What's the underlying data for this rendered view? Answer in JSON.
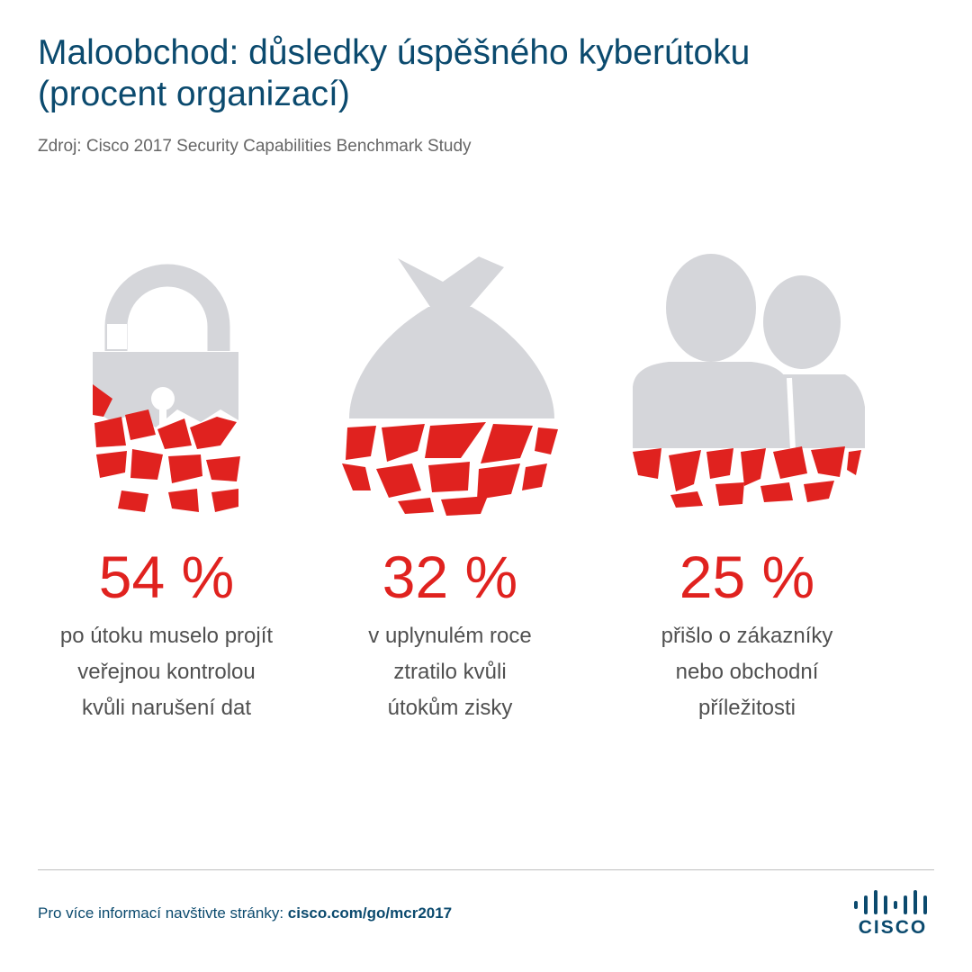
{
  "header": {
    "title_line1": "Maloobchod: důsledky úspěšného kyberútoku",
    "title_line2": "(procent organizací)",
    "source": "Zdroj: Cisco 2017 Security Capabilities Benchmark Study"
  },
  "stats": [
    {
      "icon": "broken-padlock-icon",
      "value": "54 %",
      "lines": [
        "po útoku muselo projít",
        "veřejnou kontrolou",
        "kvůli narušení dat"
      ]
    },
    {
      "icon": "broken-money-bag-icon",
      "value": "32 %",
      "lines": [
        "v uplynulém roce",
        "ztratilo kvůli",
        "útokům zisky"
      ]
    },
    {
      "icon": "broken-people-icon",
      "value": "25 %",
      "lines": [
        "přišlo o zákazníky",
        "nebo obchodní",
        "příležitosti"
      ]
    }
  ],
  "footer": {
    "prefix": "Pro více informací navštivte stránky: ",
    "link": "cisco.com/go/mcr2017",
    "logo_text": "CISCO"
  },
  "colors": {
    "accent": "#e0221f",
    "gray": "#d5d6da",
    "brand": "#0b4a6e"
  }
}
